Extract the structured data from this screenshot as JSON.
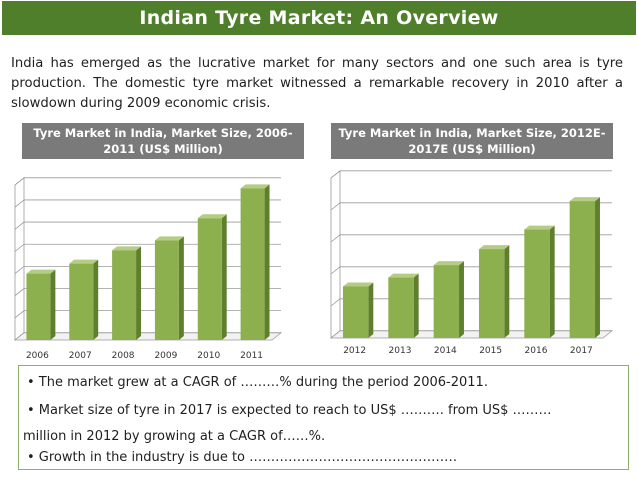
{
  "title": "Indian Tyre Market: An Overview",
  "intro": "India has emerged as the lucrative market for many sectors and one such area is tyre production. The domestic tyre market witnessed a remarkable recovery in 2010 after a slowdown during 2009 economic crisis.",
  "bullets": [
    "• The market grew at a CAGR of ………% during the period 2006-2011.",
    "• Market size of tyre in 2017 is expected to reach to US$ ………. from US$ ………",
    "million in 2012 by growing at a CAGR of……%.",
    "• Growth in the industry is due to …………………………………………"
  ],
  "colors": {
    "title_bg": "#4f7f2a",
    "bar_front": "#8db04f",
    "bar_side": "#5f7f2f",
    "bar_top": "#b4cd84",
    "header_bg": "#7a7a7a"
  },
  "chart_data": [
    {
      "type": "bar",
      "title": "Tyre Market in India, Market Size, 2006-2011 (US$ Million)",
      "categories": [
        "2006",
        "2007",
        "2008",
        "2009",
        "2010",
        "2011"
      ],
      "values": [
        3.0,
        3.45,
        4.05,
        4.5,
        5.5,
        6.85
      ],
      "ylim": [
        0,
        7
      ],
      "gridlines": 7,
      "y_tick_labels_shown": false
    },
    {
      "type": "bar",
      "title": "Tyre Market in India, Market Size, 2012E-2017E (US$ Million)",
      "categories": [
        "2012",
        "2013",
        "2014",
        "2015",
        "2016",
        "2017"
      ],
      "values": [
        1.45,
        1.7,
        2.05,
        2.5,
        3.05,
        3.85
      ],
      "ylim": [
        0,
        4.5
      ],
      "gridlines": 5,
      "y_tick_labels_shown": false
    }
  ]
}
